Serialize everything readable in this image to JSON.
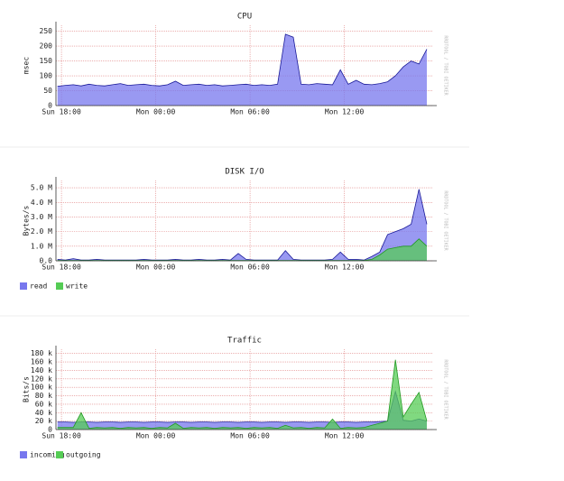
{
  "chart_data": [
    {
      "type": "area",
      "title": "CPU",
      "y_label": "msec",
      "watermark": "RRDTOOL / TOBI OETIKER",
      "x": [
        -0.25,
        0.25,
        0.75,
        1.25,
        1.75,
        2.25,
        2.75,
        3.25,
        3.75,
        4.25,
        4.75,
        5.25,
        5.75,
        6.25,
        6.75,
        7.25,
        7.75,
        8.25,
        8.75,
        9.25,
        9.75,
        10.25,
        10.75,
        11.25,
        11.75,
        12.25,
        12.75,
        13.25,
        13.75,
        14.25,
        14.75,
        15.25,
        15.75,
        16.25,
        16.75,
        17.25,
        17.75,
        18.25,
        18.75,
        19.25,
        19.75,
        20.25,
        20.75,
        21.25,
        21.75,
        22.25,
        22.75,
        23.25
      ],
      "series": [
        {
          "color": "#7777ee",
          "values": [
            65,
            68,
            70,
            66,
            72,
            68,
            66,
            70,
            74,
            68,
            70,
            72,
            68,
            66,
            70,
            82,
            68,
            70,
            72,
            68,
            70,
            66,
            68,
            70,
            72,
            68,
            70,
            68,
            72,
            240,
            230,
            72,
            70,
            74,
            72,
            70,
            120,
            72,
            85,
            72,
            70,
            74,
            80,
            100,
            130,
            150,
            140,
            190
          ]
        }
      ],
      "xlim": [
        -0.35,
        23.65
      ],
      "xticks": [
        {
          "value": 0,
          "label": "Sun 18:00"
        },
        {
          "value": 6,
          "label": "Mon 00:00"
        },
        {
          "value": 12,
          "label": "Mon 06:00"
        },
        {
          "value": 18,
          "label": "Mon 12:00"
        }
      ],
      "ylim": [
        0,
        270
      ],
      "yticks": [
        0,
        50,
        100,
        150,
        200,
        250
      ],
      "grid": true
    },
    {
      "type": "area",
      "title": "DISK I/O",
      "y_label": "Bytes/s",
      "watermark": "RRDTOOL / TOBI OETIKER",
      "x": [
        -0.25,
        0.25,
        0.75,
        1.25,
        1.75,
        2.25,
        2.75,
        3.25,
        3.75,
        4.25,
        4.75,
        5.25,
        5.75,
        6.25,
        6.75,
        7.25,
        7.75,
        8.25,
        8.75,
        9.25,
        9.75,
        10.25,
        10.75,
        11.25,
        11.75,
        12.25,
        12.75,
        13.25,
        13.75,
        14.25,
        14.75,
        15.25,
        15.75,
        16.25,
        16.75,
        17.25,
        17.75,
        18.25,
        18.75,
        19.25,
        19.75,
        20.25,
        20.75,
        21.25,
        21.75,
        22.25,
        22.75,
        23.25
      ],
      "series": [
        {
          "name": "read",
          "color": "#7777ee",
          "values": [
            100000,
            50000,
            150000,
            50000,
            50000,
            100000,
            50000,
            50000,
            50000,
            50000,
            50000,
            100000,
            50000,
            50000,
            50000,
            100000,
            50000,
            50000,
            100000,
            50000,
            50000,
            100000,
            50000,
            500000,
            100000,
            50000,
            50000,
            50000,
            50000,
            700000,
            100000,
            50000,
            50000,
            50000,
            50000,
            100000,
            600000,
            100000,
            100000,
            50000,
            300000,
            600000,
            1800000,
            2000000,
            2200000,
            2500000,
            4900000,
            2500000
          ]
        },
        {
          "name": "write",
          "color": "#55cc55",
          "values": [
            20000,
            20000,
            20000,
            20000,
            20000,
            20000,
            20000,
            20000,
            20000,
            20000,
            20000,
            20000,
            20000,
            20000,
            20000,
            20000,
            20000,
            20000,
            20000,
            20000,
            20000,
            20000,
            20000,
            20000,
            20000,
            20000,
            20000,
            20000,
            20000,
            20000,
            20000,
            20000,
            20000,
            20000,
            20000,
            20000,
            20000,
            20000,
            20000,
            20000,
            100000,
            400000,
            800000,
            900000,
            1000000,
            1000000,
            1500000,
            1000000
          ]
        }
      ],
      "xlim": [
        -0.35,
        23.65
      ],
      "xticks": [
        {
          "value": 0,
          "label": "Sun 18:00"
        },
        {
          "value": 6,
          "label": "Mon 00:00"
        },
        {
          "value": 12,
          "label": "Mon 06:00"
        },
        {
          "value": 18,
          "label": "Mon 12:00"
        }
      ],
      "ylim": [
        0,
        5500000
      ],
      "yticks": [
        {
          "value": 0,
          "label": "0.0"
        },
        {
          "value": 1000000,
          "label": "1.0 M"
        },
        {
          "value": 2000000,
          "label": "2.0 M"
        },
        {
          "value": 3000000,
          "label": "3.0 M"
        },
        {
          "value": 4000000,
          "label": "4.0 M"
        },
        {
          "value": 5000000,
          "label": "5.0 M"
        }
      ],
      "grid": true,
      "legend": "bottom-left"
    },
    {
      "type": "area",
      "title": "Traffic",
      "y_label": "Bits/s",
      "watermark": "RRDTOOL / TOBI OETIKER",
      "x": [
        -0.25,
        0.25,
        0.75,
        1.25,
        1.75,
        2.25,
        2.75,
        3.25,
        3.75,
        4.25,
        4.75,
        5.25,
        5.75,
        6.25,
        6.75,
        7.25,
        7.75,
        8.25,
        8.75,
        9.25,
        9.75,
        10.25,
        10.75,
        11.25,
        11.75,
        12.25,
        12.75,
        13.25,
        13.75,
        14.25,
        14.75,
        15.25,
        15.75,
        16.25,
        16.75,
        17.25,
        17.75,
        18.25,
        18.75,
        19.25,
        19.75,
        20.25,
        20.75,
        21.25,
        21.75,
        22.25,
        22.75,
        23.25
      ],
      "series": [
        {
          "name": "incoming",
          "color": "#7777ee",
          "values": [
            18000,
            18000,
            17000,
            18000,
            18000,
            17000,
            18000,
            18000,
            17000,
            18000,
            18000,
            17000,
            18000,
            18000,
            17000,
            18000,
            18000,
            17000,
            18000,
            18000,
            17000,
            18000,
            18000,
            17000,
            18000,
            18000,
            17000,
            18000,
            18000,
            17000,
            18000,
            18000,
            17000,
            18000,
            18000,
            17000,
            18000,
            18000,
            17000,
            18000,
            18000,
            19000,
            20000,
            90000,
            22000,
            20000,
            25000,
            20000
          ]
        },
        {
          "name": "outgoing",
          "color": "#55cc55",
          "values": [
            5000,
            5000,
            5000,
            40000,
            3000,
            5000,
            4000,
            5000,
            3000,
            5000,
            4000,
            5000,
            3000,
            5000,
            4000,
            15000,
            3000,
            5000,
            4000,
            5000,
            3000,
            5000,
            4000,
            5000,
            3000,
            5000,
            4000,
            5000,
            3000,
            10000,
            4000,
            5000,
            3000,
            5000,
            4000,
            25000,
            3000,
            5000,
            4000,
            5000,
            10000,
            15000,
            20000,
            165000,
            30000,
            60000,
            88000,
            20000
          ]
        }
      ],
      "xlim": [
        -0.35,
        23.65
      ],
      "xticks": [
        {
          "value": 0,
          "label": "Sun 18:00"
        },
        {
          "value": 6,
          "label": "Mon 00:00"
        },
        {
          "value": 12,
          "label": "Mon 06:00"
        },
        {
          "value": 18,
          "label": "Mon 12:00"
        }
      ],
      "ylim": [
        0,
        190000
      ],
      "yticks": [
        {
          "value": 0,
          "label": "0"
        },
        {
          "value": 20000,
          "label": "20 k"
        },
        {
          "value": 40000,
          "label": "40 k"
        },
        {
          "value": 60000,
          "label": "60 k"
        },
        {
          "value": 80000,
          "label": "80 k"
        },
        {
          "value": 100000,
          "label": "100 k"
        },
        {
          "value": 120000,
          "label": "120 k"
        },
        {
          "value": 140000,
          "label": "140 k"
        },
        {
          "value": 160000,
          "label": "160 k"
        },
        {
          "value": 180000,
          "label": "180 k"
        }
      ],
      "grid": true,
      "legend": "bottom-left"
    }
  ]
}
